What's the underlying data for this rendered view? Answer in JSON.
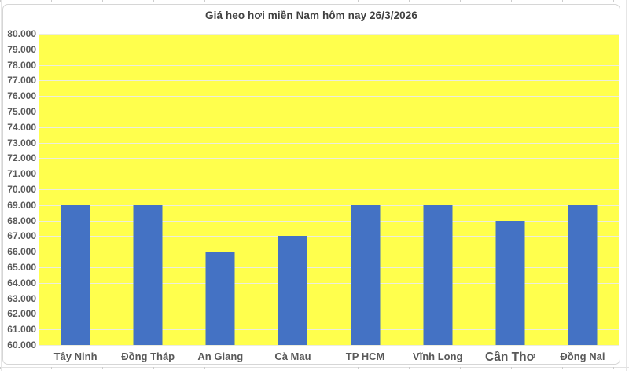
{
  "chart_data": {
    "type": "bar",
    "title": "Giá heo hơi miền Nam hôm nay 26/3/2026",
    "categories": [
      "Tây Ninh",
      "Đồng Tháp",
      "An Giang",
      "Cà Mau",
      "TP HCM",
      "Vĩnh Long",
      "Cần Thơ",
      "Đồng Nai"
    ],
    "values": [
      69000,
      69000,
      66000,
      67000,
      69000,
      69000,
      68000,
      69000
    ],
    "xlabel": "",
    "ylabel": "",
    "ylim": [
      60000,
      80000
    ],
    "y_tick_step": 1000,
    "y_ticks_top_to_bottom": [
      "80.000",
      "79.000",
      "78.000",
      "77.000",
      "76.000",
      "75.000",
      "74.000",
      "73.000",
      "72.000",
      "71.000",
      "70.000",
      "69.000",
      "68.000",
      "67.000",
      "66.000",
      "65.000",
      "64.000",
      "63.000",
      "62.000",
      "61.000",
      "60.000"
    ],
    "grid": true,
    "legend_position": "none",
    "x_label_font_px": [
      13,
      13,
      13,
      13,
      13,
      13,
      15.5,
      13
    ],
    "colors": {
      "bar": "#4472c4",
      "plot_background": "#ffff4d",
      "gridline": "#ecedde",
      "axis_label": "#595959",
      "title": "#404040",
      "chart_background": "#ffffff",
      "frame_border": "#d6d6d6"
    }
  }
}
